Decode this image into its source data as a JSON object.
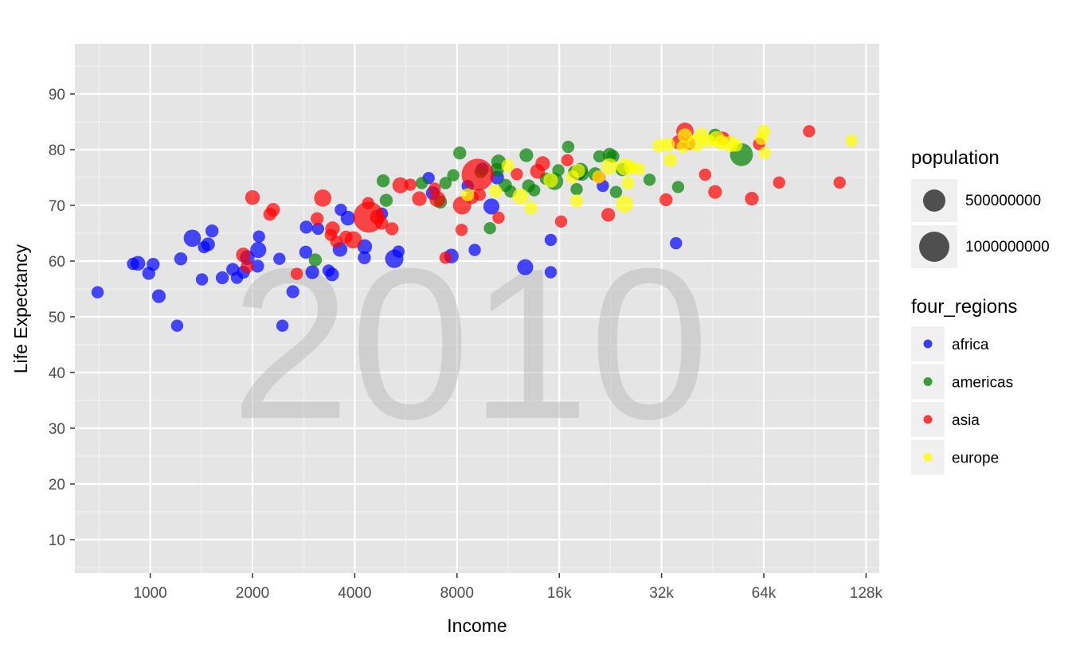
{
  "chart_data": {
    "type": "scatter",
    "title": "",
    "xlabel": "Income",
    "ylabel": "Life Expectancy",
    "x_scale": "log2",
    "xlim": [
      600,
      140000
    ],
    "ylim": [
      4,
      99
    ],
    "x_ticks": [
      {
        "value": 1000,
        "label": "1000"
      },
      {
        "value": 2000,
        "label": "2000"
      },
      {
        "value": 4000,
        "label": "4000"
      },
      {
        "value": 8000,
        "label": "8000"
      },
      {
        "value": 16000,
        "label": "16k"
      },
      {
        "value": 32000,
        "label": "32k"
      },
      {
        "value": 64000,
        "label": "64k"
      },
      {
        "value": 128000,
        "label": "128k"
      }
    ],
    "y_ticks": [
      {
        "value": 10,
        "label": "10"
      },
      {
        "value": 20,
        "label": "20"
      },
      {
        "value": 30,
        "label": "30"
      },
      {
        "value": 40,
        "label": "40"
      },
      {
        "value": 50,
        "label": "50"
      },
      {
        "value": 60,
        "label": "60"
      },
      {
        "value": 70,
        "label": "70"
      },
      {
        "value": 80,
        "label": "80"
      },
      {
        "value": 90,
        "label": "90"
      }
    ],
    "grid": true,
    "watermark": "2010",
    "colors": {
      "africa": "#0000ff",
      "americas": "#008000",
      "asia": "#ff0000",
      "europe": "#ffff00",
      "panel": "#e5e5e5",
      "legend_key": "#f0f0f0",
      "size_key": "#333333"
    },
    "legend": {
      "placement": "right",
      "size_title": "population",
      "size_entries": [
        {
          "label": "500000000",
          "value": 500000000
        },
        {
          "label": "1000000000",
          "value": 1000000000
        }
      ],
      "color_title": "four_regions",
      "color_entries": [
        {
          "label": "africa",
          "region": "africa"
        },
        {
          "label": "americas",
          "region": "americas"
        },
        {
          "label": "asia",
          "region": "asia"
        },
        {
          "label": "europe",
          "region": "europe"
        }
      ]
    },
    "series": [
      {
        "region": "africa",
        "points": [
          [
            700,
            54.4,
            8
          ],
          [
            890,
            59.5,
            8
          ],
          [
            920,
            59.6,
            15
          ],
          [
            990,
            57.8,
            10
          ],
          [
            1020,
            59.4,
            10
          ],
          [
            1060,
            53.7,
            12
          ],
          [
            1200,
            48.4,
            8
          ],
          [
            1230,
            60.4,
            10
          ],
          [
            1330,
            64.1,
            25
          ],
          [
            1420,
            56.7,
            8
          ],
          [
            1440,
            62.5,
            8
          ],
          [
            1480,
            63.0,
            12
          ],
          [
            1520,
            65.4,
            10
          ],
          [
            1630,
            57.0,
            10
          ],
          [
            1750,
            58.5,
            10
          ],
          [
            1800,
            57.0,
            8
          ],
          [
            1880,
            58.0,
            10
          ],
          [
            1930,
            60.6,
            15
          ],
          [
            2070,
            59.1,
            10
          ],
          [
            2080,
            62.0,
            20
          ],
          [
            2090,
            64.4,
            8
          ],
          [
            2400,
            60.4,
            8
          ],
          [
            2450,
            48.4,
            8
          ],
          [
            2630,
            54.5,
            10
          ],
          [
            2870,
            61.6,
            10
          ],
          [
            2880,
            66.1,
            10
          ],
          [
            3000,
            58.0,
            12
          ],
          [
            3120,
            65.8,
            8
          ],
          [
            3350,
            58.3,
            8
          ],
          [
            3430,
            57.6,
            12
          ],
          [
            3620,
            62.1,
            15
          ],
          [
            3640,
            69.2,
            8
          ],
          [
            3820,
            67.7,
            15
          ],
          [
            4270,
            60.6,
            10
          ],
          [
            4280,
            62.6,
            15
          ],
          [
            4810,
            68.5,
            8
          ],
          [
            5230,
            60.4,
            30
          ],
          [
            5380,
            61.7,
            8
          ],
          [
            6600,
            74.9,
            8
          ],
          [
            6790,
            72.2,
            12
          ],
          [
            7700,
            60.9,
            15
          ],
          [
            8600,
            73.5,
            8
          ],
          [
            9020,
            62.0,
            8
          ],
          [
            9500,
            76.5,
            10
          ],
          [
            10100,
            69.8,
            20
          ],
          [
            10500,
            75.0,
            12
          ],
          [
            12700,
            58.9,
            20
          ],
          [
            15100,
            63.8,
            8
          ],
          [
            15100,
            58.0,
            8
          ],
          [
            18200,
            75.8,
            15
          ],
          [
            21500,
            73.5,
            8
          ],
          [
            35300,
            63.2,
            8
          ]
        ]
      },
      {
        "region": "americas",
        "points": [
          [
            3060,
            60.2,
            10
          ],
          [
            4850,
            74.4,
            10
          ],
          [
            4950,
            70.9,
            10
          ],
          [
            6300,
            74.0,
            8
          ],
          [
            7150,
            70.6,
            10
          ],
          [
            7400,
            74.0,
            8
          ],
          [
            7800,
            75.4,
            8
          ],
          [
            8150,
            79.4,
            10
          ],
          [
            9400,
            76.0,
            10
          ],
          [
            10000,
            65.9,
            8
          ],
          [
            10600,
            77.8,
            15
          ],
          [
            10500,
            76.4,
            12
          ],
          [
            11100,
            73.6,
            10
          ],
          [
            11500,
            72.5,
            8
          ],
          [
            12800,
            79.0,
            12
          ],
          [
            13000,
            73.5,
            10
          ],
          [
            13500,
            72.7,
            8
          ],
          [
            14600,
            74.8,
            8
          ],
          [
            15500,
            74.3,
            25
          ],
          [
            15900,
            76.3,
            8
          ],
          [
            17000,
            80.5,
            8
          ],
          [
            17700,
            76.0,
            8
          ],
          [
            18000,
            72.9,
            8
          ],
          [
            18500,
            76.3,
            15
          ],
          [
            18700,
            75.6,
            10
          ],
          [
            20400,
            75.6,
            12
          ],
          [
            21000,
            78.8,
            8
          ],
          [
            22500,
            79.1,
            12
          ],
          [
            23000,
            78.8,
            10
          ],
          [
            23500,
            72.4,
            8
          ],
          [
            24500,
            76.4,
            10
          ],
          [
            29500,
            74.6,
            8
          ],
          [
            35800,
            73.3,
            8
          ],
          [
            46000,
            82.6,
            10
          ],
          [
            55000,
            79.1,
            55
          ]
        ]
      },
      {
        "region": "asia",
        "points": [
          [
            1880,
            61.1,
            15
          ],
          [
            1930,
            59.0,
            10
          ],
          [
            2000,
            71.4,
            15
          ],
          [
            2250,
            68.4,
            10
          ],
          [
            2300,
            69.2,
            12
          ],
          [
            2700,
            57.7,
            8
          ],
          [
            3100,
            67.6,
            10
          ],
          [
            3220,
            71.3,
            25
          ],
          [
            3400,
            64.7,
            8
          ],
          [
            3440,
            65.8,
            15
          ],
          [
            3530,
            63.5,
            8
          ],
          [
            3770,
            64.3,
            10
          ],
          [
            3960,
            63.8,
            25
          ],
          [
            4400,
            67.9,
            120
          ],
          [
            4380,
            70.4,
            8
          ],
          [
            4660,
            67.9,
            15
          ],
          [
            4800,
            66.8,
            10
          ],
          [
            5150,
            65.8,
            10
          ],
          [
            5450,
            73.6,
            20
          ],
          [
            5830,
            73.7,
            8
          ],
          [
            6200,
            71.2,
            15
          ],
          [
            6880,
            73.0,
            8
          ],
          [
            7010,
            71.1,
            20
          ],
          [
            7400,
            60.6,
            8
          ],
          [
            8250,
            65.6,
            8
          ],
          [
            8280,
            70.0,
            30
          ],
          [
            8850,
            71.4,
            10
          ],
          [
            9200,
            75.5,
            130
          ],
          [
            9330,
            71.9,
            8
          ],
          [
            10600,
            67.8,
            8
          ],
          [
            12000,
            75.6,
            8
          ],
          [
            13800,
            76.1,
            15
          ],
          [
            14300,
            77.5,
            15
          ],
          [
            16200,
            67.1,
            8
          ],
          [
            16900,
            78.1,
            8
          ],
          [
            21000,
            75.0,
            8
          ],
          [
            22300,
            68.3,
            12
          ],
          [
            33000,
            71.0,
            10
          ],
          [
            36000,
            81.3,
            15
          ],
          [
            37500,
            83.3,
            25
          ],
          [
            38500,
            81.1,
            10
          ],
          [
            43000,
            75.5,
            8
          ],
          [
            46000,
            72.4,
            12
          ],
          [
            48500,
            82.0,
            12
          ],
          [
            59000,
            71.2,
            12
          ],
          [
            62000,
            81.0,
            8
          ],
          [
            71000,
            74.1,
            8
          ],
          [
            87000,
            83.3,
            8
          ],
          [
            107000,
            74.1,
            8
          ]
        ]
      },
      {
        "region": "europe",
        "points": [
          [
            8600,
            71.9,
            10
          ],
          [
            10400,
            72.5,
            10
          ],
          [
            11300,
            77.1,
            10
          ],
          [
            12300,
            71.6,
            20
          ],
          [
            13200,
            69.5,
            10
          ],
          [
            15100,
            74.5,
            15
          ],
          [
            17500,
            75.1,
            10
          ],
          [
            18000,
            70.8,
            10
          ],
          [
            18200,
            76.2,
            12
          ],
          [
            20900,
            75.1,
            10
          ],
          [
            22500,
            77.0,
            20
          ],
          [
            24900,
            70.2,
            25
          ],
          [
            25000,
            76.9,
            25
          ],
          [
            25500,
            74.0,
            10
          ],
          [
            26000,
            76.8,
            12
          ],
          [
            27500,
            76.5,
            8
          ],
          [
            31500,
            80.7,
            12
          ],
          [
            33500,
            80.9,
            12
          ],
          [
            34000,
            78.1,
            12
          ],
          [
            37000,
            80.5,
            10
          ],
          [
            37500,
            82.5,
            15
          ],
          [
            40500,
            81.2,
            25
          ],
          [
            42000,
            82.7,
            12
          ],
          [
            44000,
            81.6,
            10
          ],
          [
            46500,
            81.9,
            20
          ],
          [
            48000,
            81.3,
            15
          ],
          [
            51000,
            81.0,
            20
          ],
          [
            53000,
            80.8,
            10
          ],
          [
            63000,
            82.0,
            10
          ],
          [
            64000,
            83.3,
            10
          ],
          [
            64500,
            79.4,
            8
          ],
          [
            116000,
            81.6,
            8
          ]
        ]
      }
    ]
  }
}
